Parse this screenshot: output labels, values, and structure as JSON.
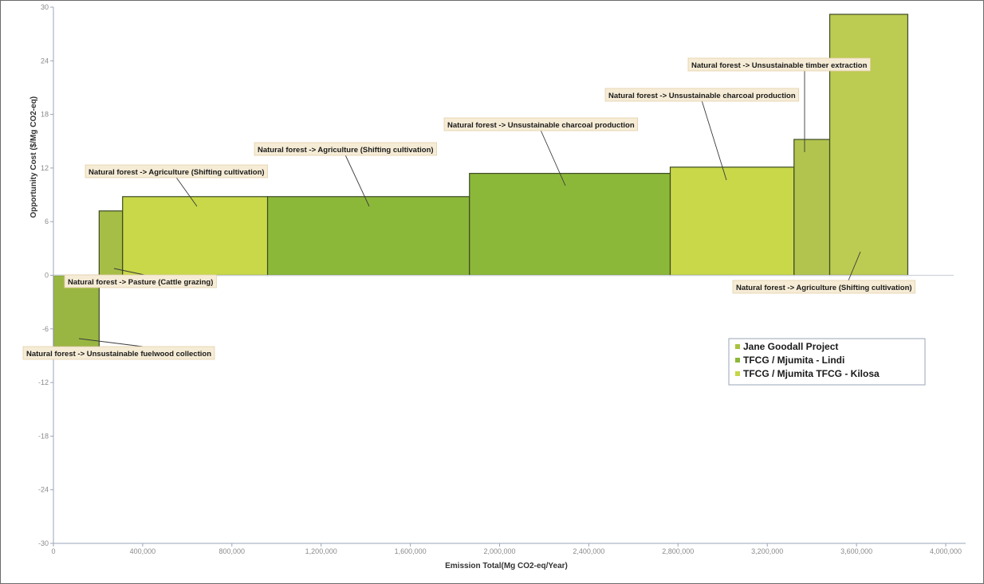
{
  "chart_data": {
    "type": "bar",
    "subtype": "marginal-abatement-cost-curve",
    "title": "",
    "xlabel": "Emission Total(Mg CO2-eq/Year)",
    "ylabel": "Opportunity Cost ($/Mg CO2-eq)",
    "xlim": [
      0,
      4000000
    ],
    "ylim": [
      -30,
      30
    ],
    "x_ticks": [
      0,
      400000,
      800000,
      1200000,
      1600000,
      2000000,
      2400000,
      2800000,
      3200000,
      3600000,
      4000000
    ],
    "x_tick_labels": [
      "0",
      "400,000",
      "800,000",
      "1,200,000",
      "1,600,000",
      "2,000,000",
      "2,400,000",
      "2,800,000",
      "3,200,000",
      "3,600,000",
      "4,000,000"
    ],
    "y_ticks": [
      -30,
      -24,
      -18,
      -12,
      -6,
      0,
      6,
      12,
      18,
      24,
      30
    ],
    "y_tick_labels": [
      "-30",
      "-24",
      "-18",
      "-12",
      "-6",
      "0",
      "6",
      "12",
      "18",
      "24",
      "30"
    ],
    "grid": false,
    "legend_position": "right",
    "series": [
      {
        "name": "Jane Goodall Project",
        "color": "#a8c23c"
      },
      {
        "name": "TFCG / Mjumita - Lindi",
        "color": "#8cb83a"
      },
      {
        "name": "TFCG / Mjumita TFCG - Kilosa",
        "color": "#c6d648"
      }
    ],
    "bars": [
      {
        "label": "Natural forest -> Unsustainable fuelwood collection",
        "x_start": 0,
        "x_end": 205000,
        "value": -8,
        "color": "#9ab642"
      },
      {
        "label": "Natural forest -> Pasture (Cattle grazing)",
        "x_start": 205000,
        "x_end": 310000,
        "value": 7.2,
        "color": "#a6be46"
      },
      {
        "label": "Natural forest -> Agriculture (Shifting cultivation)",
        "x_start": 310000,
        "x_end": 960000,
        "value": 8.8,
        "color": "#c8d848"
      },
      {
        "label": "Natural forest -> Agriculture (Shifting cultivation)",
        "x_start": 960000,
        "x_end": 1865000,
        "value": 8.8,
        "color": "#8cb83a"
      },
      {
        "label": "Natural forest -> Unsustainable charcoal production",
        "x_start": 1865000,
        "x_end": 2765000,
        "value": 11.4,
        "color": "#8cb83a"
      },
      {
        "label": "Natural forest -> Unsustainable charcoal production",
        "x_start": 2765000,
        "x_end": 3320000,
        "value": 12.1,
        "color": "#c8d848"
      },
      {
        "label": "Natural forest -> Unsustainable timber extraction",
        "x_start": 3320000,
        "x_end": 3480000,
        "value": 15.2,
        "color": "#b2c44e"
      },
      {
        "label": "Natural forest -> Agriculture (Shifting cultivation)",
        "x_start": 3480000,
        "x_end": 3830000,
        "value": 29.2,
        "color": "#bccb52"
      }
    ],
    "annotations": [
      {
        "text": "Natural forest -> Unsustainable fuelwood collection",
        "bar": 0
      },
      {
        "text": "Natural forest -> Pasture (Cattle grazing)",
        "bar": 1
      },
      {
        "text": "Natural forest -> Agriculture (Shifting cultivation)",
        "bar": 2
      },
      {
        "text": "Natural forest -> Agriculture (Shifting cultivation)",
        "bar": 3
      },
      {
        "text": "Natural forest -> Unsustainable charcoal production",
        "bar": 4
      },
      {
        "text": "Natural forest -> Unsustainable charcoal production",
        "bar": 5
      },
      {
        "text": "Natural forest -> Unsustainable timber extraction",
        "bar": 6
      },
      {
        "text": "Natural forest -> Agriculture (Shifting cultivation)",
        "bar": 7
      }
    ]
  }
}
